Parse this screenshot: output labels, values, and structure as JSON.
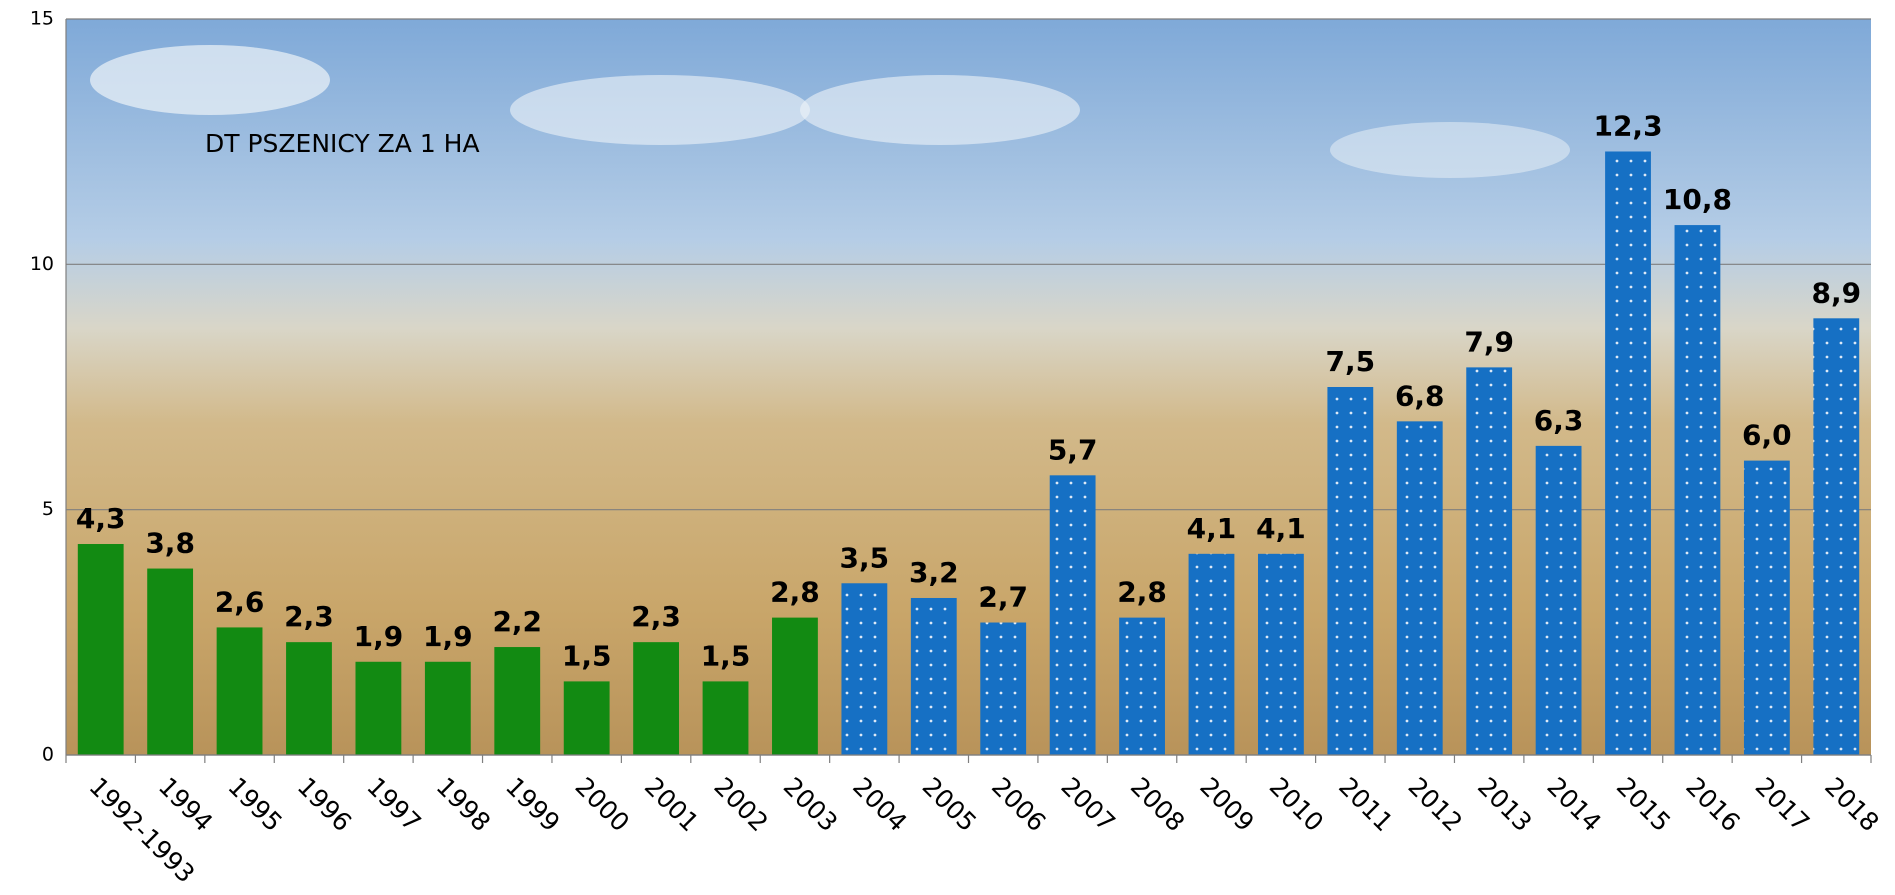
{
  "chart_data": {
    "type": "bar",
    "title": "DT PSZENICY ZA 1 HA",
    "categories": [
      "1992-1993",
      "1994",
      "1995",
      "1996",
      "1997",
      "1998",
      "1999",
      "2000",
      "2001",
      "2002",
      "2003",
      "2004",
      "2005",
      "2006",
      "2007",
      "2008",
      "2009",
      "2010",
      "2011",
      "2012",
      "2013",
      "2014",
      "2015",
      "2016",
      "2017",
      "2018"
    ],
    "values": [
      4.3,
      3.8,
      2.6,
      2.3,
      1.9,
      1.9,
      2.2,
      1.5,
      2.3,
      1.5,
      2.8,
      3.5,
      3.2,
      2.7,
      5.7,
      2.8,
      4.1,
      4.1,
      7.5,
      6.8,
      7.9,
      6.3,
      12.3,
      10.8,
      6.0,
      8.9
    ],
    "value_labels": [
      "4,3",
      "3,8",
      "2,6",
      "2,3",
      "1,9",
      "1,9",
      "2,2",
      "1,5",
      "2,3",
      "1,5",
      "2,8",
      "3,5",
      "3,2",
      "2,7",
      "5,7",
      "2,8",
      "4,1",
      "4,1",
      "7,5",
      "6,8",
      "7,9",
      "6,3",
      "12,3",
      "10,8",
      "6,0",
      "8,9"
    ],
    "colors": [
      "#128a12",
      "#128a12",
      "#128a12",
      "#128a12",
      "#128a12",
      "#128a12",
      "#128a12",
      "#128a12",
      "#128a12",
      "#128a12",
      "#128a12",
      "#1670c4",
      "#1670c4",
      "#1670c4",
      "#1670c4",
      "#1670c4",
      "#1670c4",
      "#1670c4",
      "#1670c4",
      "#1670c4",
      "#1670c4",
      "#1670c4",
      "#1670c4",
      "#1670c4",
      "#1670c4",
      "#1670c4"
    ],
    "patterns": [
      "solid",
      "solid",
      "solid",
      "solid",
      "solid",
      "solid",
      "solid",
      "solid",
      "solid",
      "solid",
      "solid",
      "dots",
      "dots",
      "dots",
      "dots",
      "dots",
      "dots",
      "dots",
      "dots",
      "dots",
      "dots",
      "dots",
      "dots",
      "dots",
      "dots",
      "dots"
    ],
    "ylim": [
      0,
      15
    ],
    "yticks": [
      0,
      5,
      10,
      15
    ],
    "grid": true
  }
}
